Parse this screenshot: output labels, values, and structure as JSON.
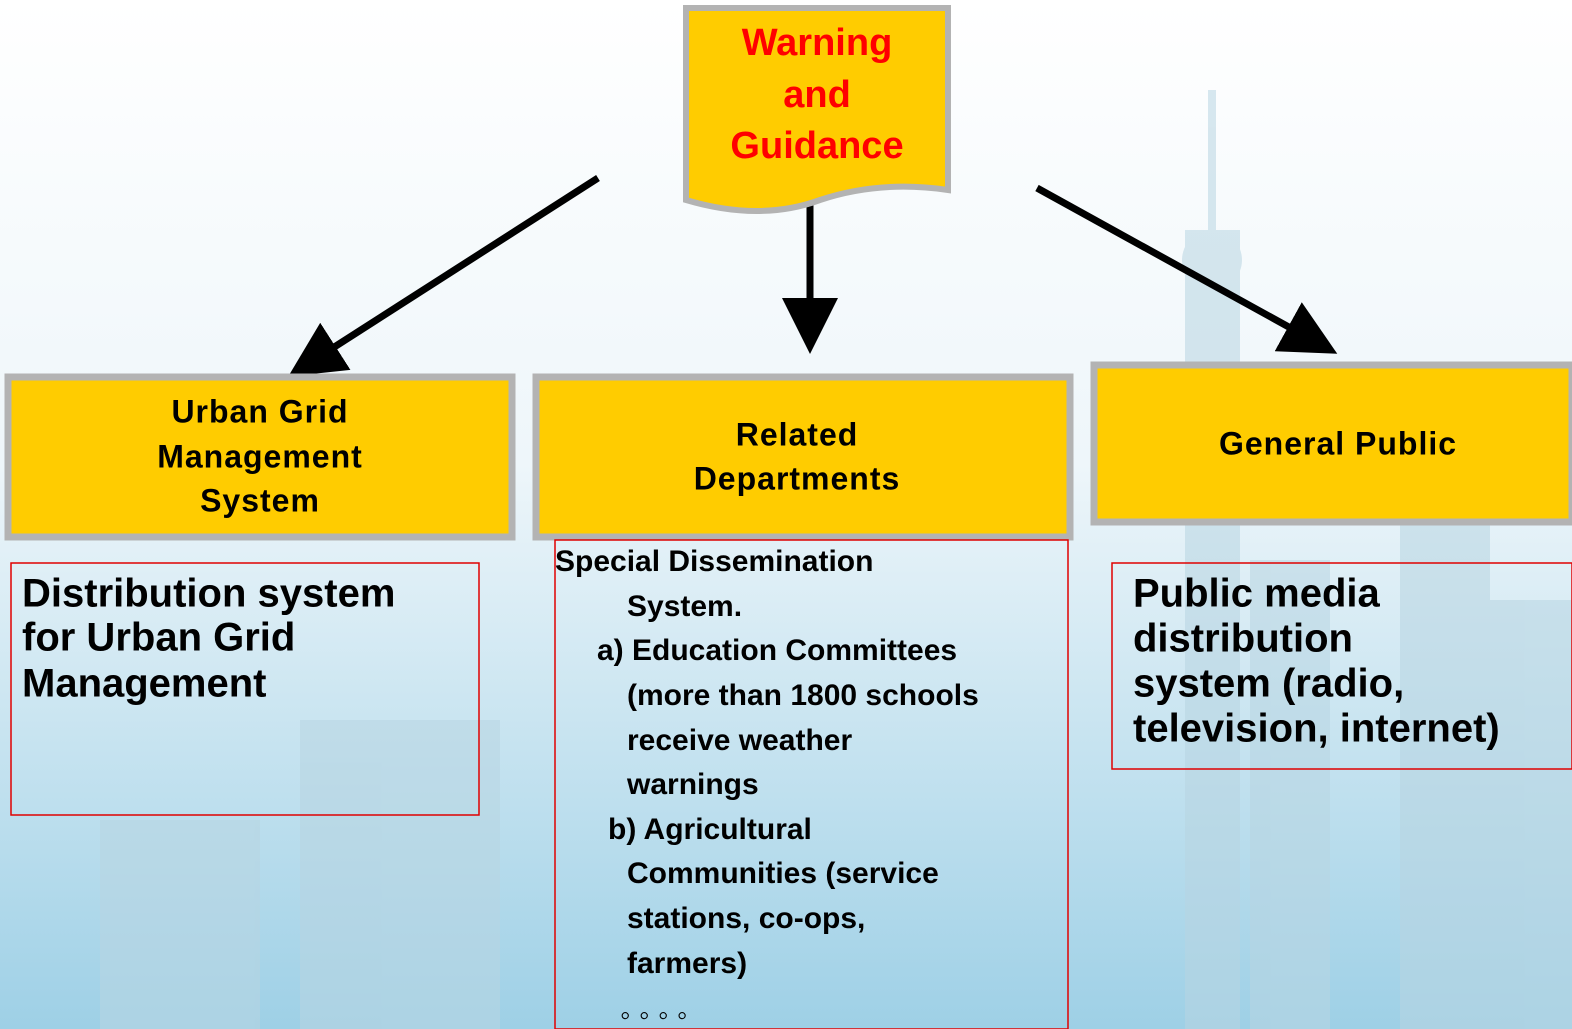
{
  "root": {
    "label": [
      "Warning",
      "and",
      "Guidance"
    ]
  },
  "nodes": [
    {
      "title": [
        "Urban Grid",
        "Management",
        "System"
      ],
      "description": [
        "Distribution system",
        "for Urban Grid",
        "Management"
      ]
    },
    {
      "title": [
        "Related",
        "Departments"
      ],
      "description": [
        "Special Dissemination",
        "System.",
        "a) Education Committees",
        "(more than 1800 schools",
        "receive  weather",
        "warnings",
        "b) Agricultural",
        "Communities (service",
        "stations, co-ops,",
        "farmers)",
        "◦ ◦ ◦ ◦"
      ]
    },
    {
      "title": [
        "General Public"
      ],
      "description": [
        "Public media",
        "distribution",
        "system (radio,",
        "television, internet)"
      ]
    }
  ]
}
